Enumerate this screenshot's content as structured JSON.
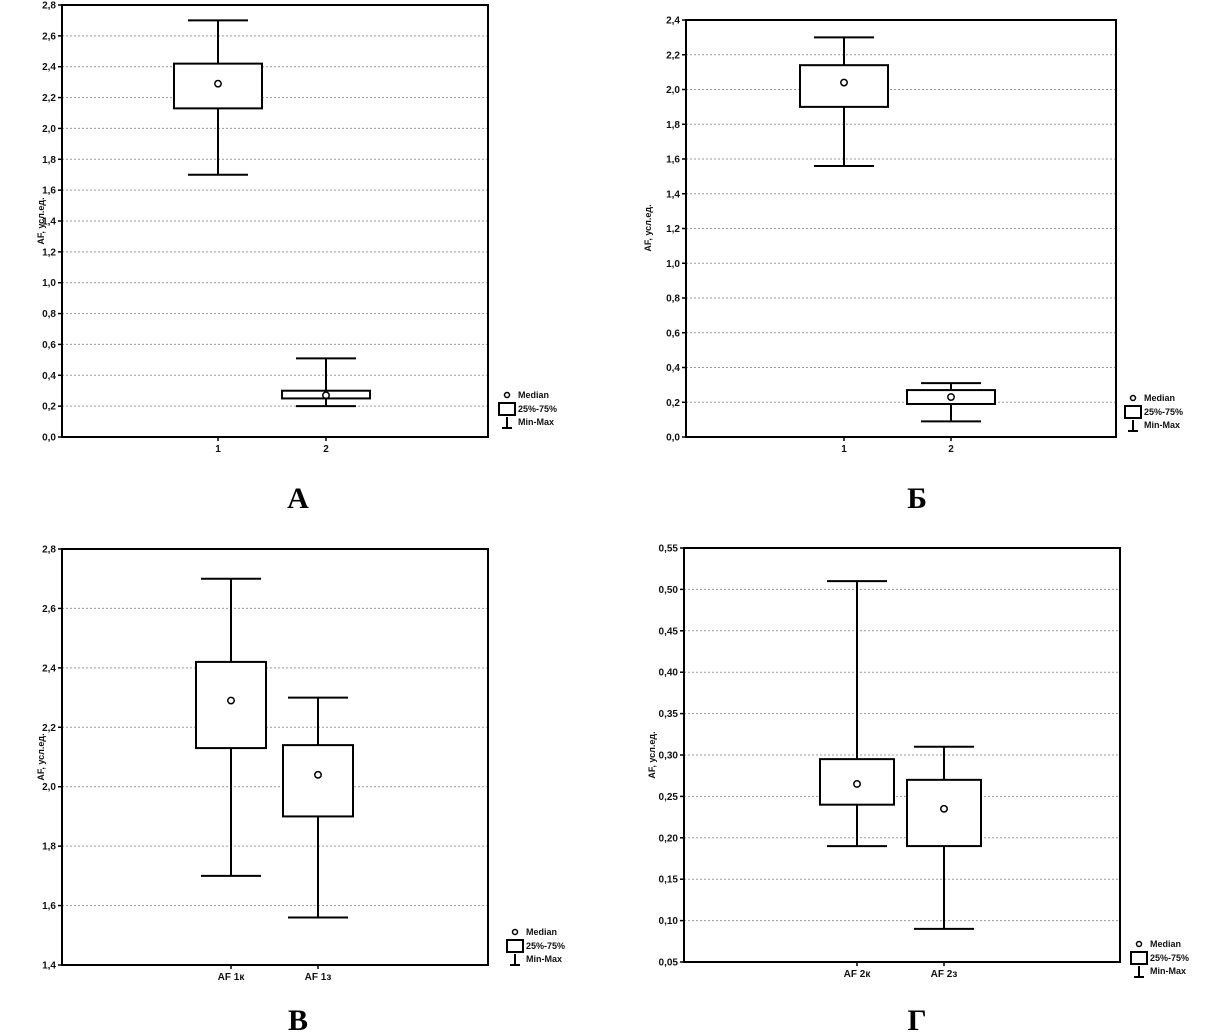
{
  "chart_data": [
    {
      "type": "boxplot",
      "panel_label": "А",
      "ylabel": "AF, усл.ед.",
      "ylim": [
        0.0,
        2.8
      ],
      "yticks": [
        "0,0",
        "0,2",
        "0,4",
        "0,6",
        "0,8",
        "1,0",
        "1,2",
        "1,4",
        "1,6",
        "1,8",
        "2,0",
        "2,2",
        "2,4",
        "2,6",
        "2,8"
      ],
      "categories": [
        "1",
        "2"
      ],
      "boxes": [
        {
          "min": 1.7,
          "q1": 2.13,
          "median": 2.29,
          "q3": 2.42,
          "max": 2.7
        },
        {
          "min": 0.2,
          "q1": 0.25,
          "median": 0.27,
          "q3": 0.3,
          "max": 0.51
        }
      ],
      "legend": [
        "Median",
        "25%-75%",
        "Min-Max"
      ]
    },
    {
      "type": "boxplot",
      "panel_label": "Б",
      "ylabel": "AF, усл.ед.",
      "ylim": [
        0.0,
        2.4
      ],
      "yticks": [
        "0,0",
        "0,2",
        "0,4",
        "0,6",
        "0,8",
        "1,0",
        "1,2",
        "1,4",
        "1,6",
        "1,8",
        "2,0",
        "2,2",
        "2,4"
      ],
      "categories": [
        "1",
        "2"
      ],
      "boxes": [
        {
          "min": 1.56,
          "q1": 1.9,
          "median": 2.04,
          "q3": 2.14,
          "max": 2.3
        },
        {
          "min": 0.09,
          "q1": 0.19,
          "median": 0.23,
          "q3": 0.27,
          "max": 0.31
        }
      ],
      "legend": [
        "Median",
        "25%-75%",
        "Min-Max"
      ]
    },
    {
      "type": "boxplot",
      "panel_label": "В",
      "ylabel": "AF, усл.ед.",
      "ylim": [
        1.4,
        2.8
      ],
      "yticks": [
        "1,4",
        "1,6",
        "1,8",
        "2,0",
        "2,2",
        "2,4",
        "2,6",
        "2,8"
      ],
      "categories": [
        "AF 1к",
        "AF 1з"
      ],
      "boxes": [
        {
          "min": 1.7,
          "q1": 2.13,
          "median": 2.29,
          "q3": 2.42,
          "max": 2.7
        },
        {
          "min": 1.56,
          "q1": 1.9,
          "median": 2.04,
          "q3": 2.14,
          "max": 2.3
        }
      ],
      "legend": [
        "Median",
        "25%-75%",
        "Min-Max"
      ]
    },
    {
      "type": "boxplot",
      "panel_label": "Г",
      "ylabel": "AF, усл.ед.",
      "ylim": [
        0.05,
        0.55
      ],
      "yticks": [
        "0,05",
        "0,10",
        "0,15",
        "0,20",
        "0,25",
        "0,30",
        "0,35",
        "0,40",
        "0,45",
        "0,50",
        "0,55"
      ],
      "categories": [
        "AF 2к",
        "AF 2з"
      ],
      "boxes": [
        {
          "min": 0.19,
          "q1": 0.24,
          "median": 0.265,
          "q3": 0.295,
          "max": 0.51
        },
        {
          "min": 0.09,
          "q1": 0.19,
          "median": 0.235,
          "q3": 0.27,
          "max": 0.31
        }
      ],
      "legend": [
        "Median",
        "25%-75%",
        "Min-Max"
      ]
    }
  ]
}
